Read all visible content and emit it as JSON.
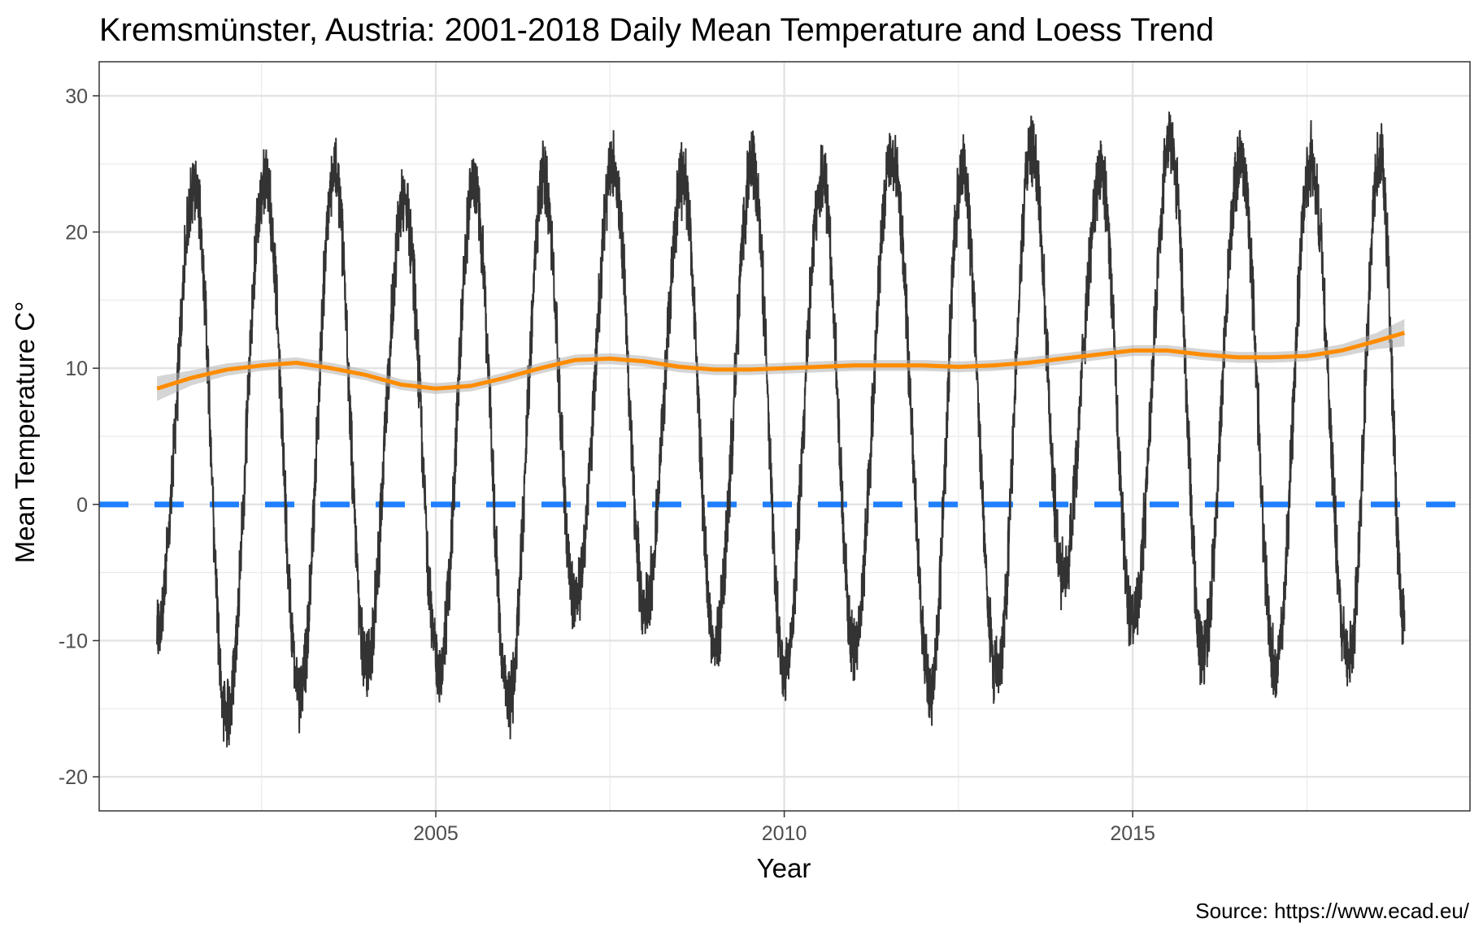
{
  "chart_data": {
    "type": "line",
    "title": "Kremsmünster, Austria: 2001-2018 Daily Mean Temperature and Loess Trend",
    "xlabel": "Year",
    "ylabel": "Mean Temperature C°",
    "caption": "Source: https://www.ecad.eu/",
    "xlim": [
      2000.17,
      2019.84
    ],
    "ylim": [
      -22.5,
      32.5
    ],
    "x_ticks": [
      2005,
      2010,
      2015
    ],
    "y_ticks": [
      -20,
      -10,
      0,
      10,
      20,
      30
    ],
    "grid": true,
    "reference_line": {
      "y": 0,
      "style": "dashed",
      "color": "#1f7fff"
    },
    "series": [
      {
        "name": "",
        "kind": "daily_mean",
        "color": "#333333",
        "x_range": [
          2001.0,
          2018.9
        ],
        "note": "daily values, approx. annual cycle",
        "seasonal_peaks": [
          {
            "x": 2001.55,
            "y": 25.0
          },
          {
            "x": 2002.55,
            "y": 25.6
          },
          {
            "x": 2003.55,
            "y": 26.0
          },
          {
            "x": 2004.55,
            "y": 23.9
          },
          {
            "x": 2005.55,
            "y": 25.1
          },
          {
            "x": 2006.55,
            "y": 25.6
          },
          {
            "x": 2007.55,
            "y": 26.3
          },
          {
            "x": 2008.55,
            "y": 25.4
          },
          {
            "x": 2009.55,
            "y": 26.4
          },
          {
            "x": 2010.55,
            "y": 25.7
          },
          {
            "x": 2011.55,
            "y": 27.4
          },
          {
            "x": 2012.55,
            "y": 25.9
          },
          {
            "x": 2013.55,
            "y": 27.8
          },
          {
            "x": 2014.55,
            "y": 25.5
          },
          {
            "x": 2015.55,
            "y": 28.2
          },
          {
            "x": 2016.55,
            "y": 26.9
          },
          {
            "x": 2017.55,
            "y": 26.8
          },
          {
            "x": 2018.55,
            "y": 27.2
          }
        ],
        "seasonal_troughs": [
          {
            "x": 2001.0,
            "y": -7.6
          },
          {
            "x": 2002.0,
            "y": -14.0
          },
          {
            "x": 2003.05,
            "y": -12.2
          },
          {
            "x": 2004.0,
            "y": -10.3
          },
          {
            "x": 2005.05,
            "y": -10.7
          },
          {
            "x": 2006.05,
            "y": -13.0
          },
          {
            "x": 2007.0,
            "y": -5.7
          },
          {
            "x": 2008.0,
            "y": -6.3
          },
          {
            "x": 2009.0,
            "y": -8.7
          },
          {
            "x": 2010.0,
            "y": -10.8
          },
          {
            "x": 2011.0,
            "y": -9.0
          },
          {
            "x": 2012.1,
            "y": -12.1
          },
          {
            "x": 2013.05,
            "y": -11.1
          },
          {
            "x": 2014.0,
            "y": -3.5
          },
          {
            "x": 2015.0,
            "y": -7.2
          },
          {
            "x": 2016.0,
            "y": -9.2
          },
          {
            "x": 2017.05,
            "y": -10.4
          },
          {
            "x": 2018.1,
            "y": -10.0
          },
          {
            "x": 2018.9,
            "y": -6.7
          }
        ]
      },
      {
        "name": "",
        "kind": "loess_trend",
        "color": "#ff8c00",
        "band_color": "#b3b3b3",
        "x": [
          2001.0,
          2001.5,
          2002.0,
          2002.5,
          2003.0,
          2003.5,
          2004.0,
          2004.5,
          2005.0,
          2005.5,
          2006.0,
          2006.5,
          2007.0,
          2007.5,
          2008.0,
          2008.5,
          2009.0,
          2009.5,
          2010.0,
          2010.5,
          2011.0,
          2011.5,
          2012.0,
          2012.5,
          2013.0,
          2013.5,
          2014.0,
          2014.5,
          2015.0,
          2015.5,
          2016.0,
          2016.5,
          2017.0,
          2017.5,
          2018.0,
          2018.5,
          2018.9
        ],
        "y": [
          8.5,
          9.3,
          9.9,
          10.2,
          10.4,
          10.0,
          9.5,
          8.8,
          8.5,
          8.7,
          9.3,
          10.0,
          10.6,
          10.7,
          10.5,
          10.1,
          9.9,
          9.9,
          10.0,
          10.1,
          10.2,
          10.2,
          10.2,
          10.1,
          10.2,
          10.4,
          10.7,
          11.0,
          11.3,
          11.3,
          11.0,
          10.8,
          10.8,
          10.9,
          11.3,
          12.0,
          12.6
        ],
        "band_halfwidth": [
          0.9,
          0.55,
          0.45,
          0.4,
          0.4,
          0.4,
          0.4,
          0.4,
          0.4,
          0.4,
          0.4,
          0.4,
          0.4,
          0.4,
          0.4,
          0.4,
          0.4,
          0.4,
          0.4,
          0.4,
          0.4,
          0.4,
          0.4,
          0.4,
          0.4,
          0.4,
          0.4,
          0.4,
          0.4,
          0.4,
          0.4,
          0.4,
          0.4,
          0.4,
          0.45,
          0.6,
          1.0
        ]
      }
    ]
  }
}
